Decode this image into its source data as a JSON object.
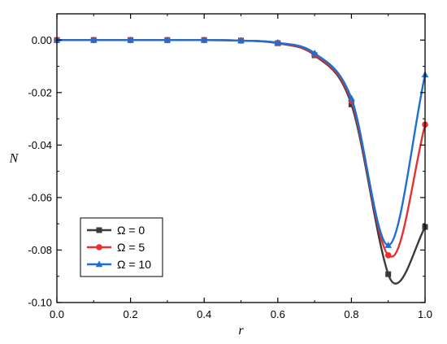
{
  "chart_data": {
    "type": "line",
    "xlabel": "r",
    "ylabel": "N",
    "xlim": [
      0.0,
      1.0
    ],
    "ylim": [
      -0.1,
      0.01
    ],
    "xticks": [
      "0.0",
      "0.2",
      "0.4",
      "0.6",
      "0.8",
      "1.0"
    ],
    "xtick_values": [
      0.0,
      0.2,
      0.4,
      0.6,
      0.8,
      1.0
    ],
    "yticks": [
      "0.00",
      "-0.02",
      "-0.04",
      "-0.06",
      "-0.08",
      "-0.10"
    ],
    "ytick_values": [
      0.0,
      -0.02,
      -0.04,
      -0.06,
      -0.08,
      -0.1
    ],
    "grid": false,
    "legend_position": "bottom-left",
    "series": [
      {
        "name": "Ω = 0",
        "color": "#3b3b3b",
        "marker": "square",
        "x": [
          0.0,
          0.1,
          0.2,
          0.3,
          0.4,
          0.5,
          0.6,
          0.7,
          0.8,
          0.9,
          0.92,
          1.0
        ],
        "y": [
          0.0,
          0.0,
          0.0,
          0.0,
          0.0,
          -0.0002,
          -0.0012,
          -0.0058,
          -0.0245,
          -0.0892,
          -0.0928,
          -0.0712
        ],
        "marker_x": [
          0.0,
          0.1,
          0.2,
          0.3,
          0.4,
          0.5,
          0.6,
          0.7,
          0.8,
          0.9,
          1.0
        ],
        "marker_y": [
          0.0,
          0.0,
          0.0,
          0.0,
          0.0,
          -0.0002,
          -0.0012,
          -0.0058,
          -0.0245,
          -0.0892,
          -0.0712
        ]
      },
      {
        "name": "Ω = 5",
        "color": "#e8302f",
        "marker": "circle",
        "x": [
          0.0,
          0.1,
          0.2,
          0.3,
          0.4,
          0.5,
          0.6,
          0.7,
          0.8,
          0.9,
          0.91,
          1.0
        ],
        "y": [
          0.0,
          0.0,
          0.0,
          0.0,
          0.0,
          -0.0002,
          -0.0011,
          -0.0055,
          -0.0232,
          -0.082,
          -0.0825,
          -0.0322
        ],
        "marker_x": [
          0.0,
          0.1,
          0.2,
          0.3,
          0.4,
          0.5,
          0.6,
          0.7,
          0.8,
          0.9,
          1.0
        ],
        "marker_y": [
          0.0,
          0.0,
          0.0,
          0.0,
          0.0,
          -0.0002,
          -0.0011,
          -0.0055,
          -0.0232,
          -0.082,
          -0.0322
        ]
      },
      {
        "name": "Ω = 10",
        "color": "#1f6fd1",
        "marker": "triangle",
        "x": [
          0.0,
          0.1,
          0.2,
          0.3,
          0.4,
          0.5,
          0.6,
          0.7,
          0.8,
          0.9,
          1.0
        ],
        "y": [
          0.0,
          0.0,
          0.0,
          0.0,
          0.0,
          -0.0002,
          -0.001,
          -0.005,
          -0.0222,
          -0.0782,
          -0.0132
        ],
        "marker_x": [
          0.0,
          0.1,
          0.2,
          0.3,
          0.4,
          0.5,
          0.6,
          0.7,
          0.8,
          0.9,
          1.0
        ],
        "marker_y": [
          0.0,
          0.0,
          0.0,
          0.0,
          0.0,
          -0.0002,
          -0.001,
          -0.005,
          -0.0222,
          -0.0782,
          -0.0132
        ]
      }
    ]
  }
}
